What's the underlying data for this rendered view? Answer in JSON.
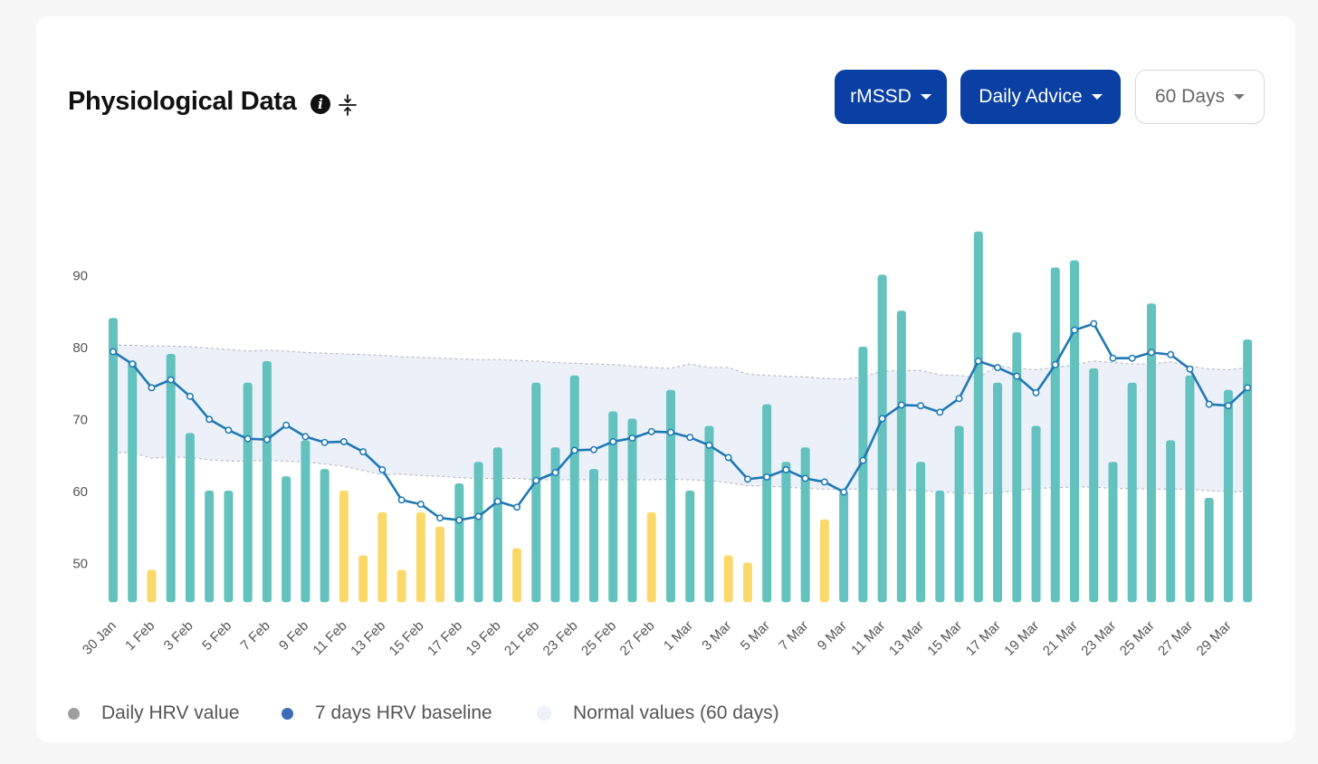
{
  "header": {
    "title": "Physiological Data",
    "info_icon": "info-icon",
    "collapse_icon": "collapse-vertical-icon"
  },
  "controls": {
    "metric_label": "rMSSD",
    "advice_label": "Daily Advice",
    "range_label": "60 Days"
  },
  "colors": {
    "primary_button": "#0a3fa3",
    "bar_normal": "#63c2bd",
    "bar_low": "#fad96b",
    "baseline_line": "#1f78b4",
    "normal_band": "#e9eef8"
  },
  "legend": [
    {
      "label": "Daily HRV value",
      "color": "#9e9e9e"
    },
    {
      "label": "7 days HRV baseline",
      "color": "#3d6bb5"
    },
    {
      "label": "Normal values (60 days)",
      "color": "#edf1f9"
    }
  ],
  "chart_data": {
    "type": "bar",
    "ylim": [
      44.5,
      100
    ],
    "yticks": [
      50,
      60,
      70,
      80,
      90
    ],
    "grid": false,
    "legend_position": "bottom-left",
    "x_tick_labels": [
      "30 Jan",
      "1 Feb",
      "3 Feb",
      "5 Feb",
      "7 Feb",
      "9 Feb",
      "11 Feb",
      "13 Feb",
      "15 Feb",
      "17 Feb",
      "19 Feb",
      "21 Feb",
      "23 Feb",
      "25 Feb",
      "27 Feb",
      "1 Mar",
      "3 Mar",
      "5 Mar",
      "7 Mar",
      "9 Mar",
      "11 Mar",
      "13 Mar",
      "15 Mar",
      "17 Mar",
      "19 Mar",
      "21 Mar",
      "23 Mar",
      "25 Mar",
      "27 Mar",
      "29 Mar"
    ],
    "series": [
      {
        "name": "Daily HRV value",
        "type": "bar",
        "values": [
          84,
          78,
          49,
          79,
          68,
          60,
          60,
          75,
          78,
          62,
          67,
          63,
          60,
          51,
          57,
          49,
          57,
          55,
          61,
          64,
          66,
          52,
          75,
          66,
          76,
          63,
          71,
          70,
          57,
          74,
          60,
          69,
          51,
          50,
          72,
          64,
          66,
          56,
          60,
          80,
          90,
          85,
          64,
          60,
          69,
          96,
          75,
          82,
          69,
          91,
          92,
          77,
          64,
          75,
          86,
          67,
          76,
          59,
          74,
          81
        ],
        "status": [
          "n",
          "n",
          "l",
          "n",
          "n",
          "n",
          "n",
          "n",
          "n",
          "n",
          "n",
          "n",
          "l",
          "l",
          "l",
          "l",
          "l",
          "l",
          "n",
          "n",
          "n",
          "l",
          "n",
          "n",
          "n",
          "n",
          "n",
          "n",
          "l",
          "n",
          "n",
          "n",
          "l",
          "l",
          "n",
          "n",
          "n",
          "l",
          "n",
          "n",
          "n",
          "n",
          "n",
          "n",
          "n",
          "n",
          "n",
          "n",
          "n",
          "n",
          "n",
          "n",
          "n",
          "n",
          "n",
          "n",
          "n",
          "n",
          "n",
          "n"
        ]
      },
      {
        "name": "7 days HRV baseline",
        "type": "line",
        "values": [
          79.3,
          77.6,
          74.3,
          75.4,
          73.1,
          69.9,
          68.4,
          67.2,
          67.1,
          69.1,
          67.5,
          66.7,
          66.8,
          65.4,
          62.9,
          58.7,
          58.1,
          56.2,
          55.9,
          56.4,
          58.5,
          57.7,
          61.4,
          62.5,
          65.6,
          65.7,
          66.8,
          67.3,
          68.2,
          68.1,
          67.4,
          66.3,
          64.6,
          61.6,
          61.9,
          62.9,
          61.7,
          61.2,
          59.8,
          64.2,
          70.0,
          71.9,
          71.8,
          70.9,
          72.8,
          78.0,
          77.1,
          75.9,
          73.6,
          77.5,
          82.3,
          83.2,
          78.4,
          78.4,
          79.2,
          78.9,
          76.9,
          72.0,
          71.8,
          74.3
        ]
      },
      {
        "name": "Normal values (60 days)",
        "type": "area",
        "upper": [
          80.2,
          80.2,
          80.1,
          80.1,
          80.0,
          79.8,
          79.6,
          79.4,
          79.5,
          79.4,
          79.2,
          79.1,
          79.0,
          78.9,
          78.8,
          78.6,
          78.5,
          78.4,
          78.3,
          78.2,
          78.2,
          78.1,
          78.0,
          77.8,
          77.7,
          77.6,
          77.5,
          77.3,
          77.1,
          77.0,
          77.6,
          77.1,
          77.1,
          76.2,
          76.0,
          75.9,
          75.8,
          75.6,
          75.5,
          75.8,
          76.6,
          76.7,
          76.7,
          76.1,
          76.0,
          75.7,
          77.3,
          77.0,
          76.8,
          77.1,
          77.5,
          78.0,
          77.8,
          77.6,
          77.6,
          77.9,
          77.3,
          76.9,
          76.8,
          77.1
        ],
        "lower": [
          65.3,
          65.3,
          64.5,
          64.7,
          64.6,
          64.3,
          64.1,
          64.1,
          64.2,
          64.1,
          64.0,
          63.7,
          63.4,
          62.8,
          62.2,
          62.3,
          62.1,
          62.0,
          61.8,
          61.7,
          61.7,
          61.7,
          61.5,
          61.5,
          61.5,
          61.5,
          61.5,
          61.5,
          61.5,
          61.6,
          61.5,
          61.4,
          61.1,
          60.7,
          60.6,
          60.5,
          60.3,
          60.2,
          60.2,
          60.2,
          60.2,
          60.1,
          60.0,
          59.8,
          59.7,
          59.5,
          59.7,
          60.0,
          60.3,
          60.4,
          60.5,
          60.5,
          60.3,
          60.3,
          60.2,
          60.2,
          60.2,
          60.0,
          59.8,
          59.9
        ]
      }
    ]
  }
}
